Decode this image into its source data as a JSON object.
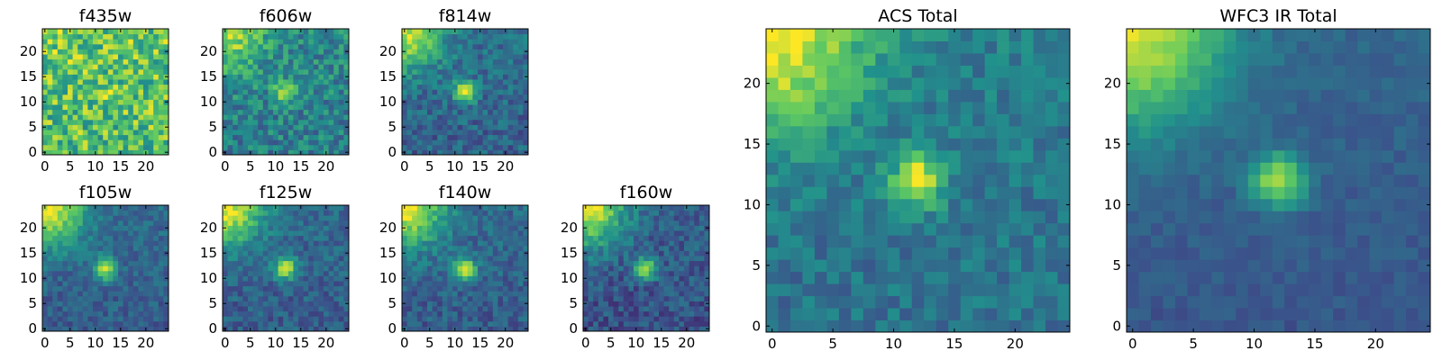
{
  "figure": {
    "layout": "grid",
    "background": "#ffffff"
  },
  "colormap": [
    "#440154",
    "#3b528b",
    "#21918c",
    "#5ec962",
    "#fde725"
  ],
  "chart_data": [
    {
      "type": "heatmap",
      "title": "f435w",
      "grid_size": 25,
      "source_position": [
        12,
        12
      ],
      "source_strength": 0.08,
      "corner_glow": 0.05,
      "noise_level": 0.5,
      "background_level": 0.72,
      "seed": 11,
      "xlim": [
        0,
        24
      ],
      "ylim": [
        0,
        24
      ],
      "xticks": [
        0,
        5,
        10,
        15,
        20
      ],
      "yticks": [
        0,
        5,
        10,
        15,
        20
      ]
    },
    {
      "type": "heatmap",
      "title": "f606w",
      "grid_size": 25,
      "source_position": [
        12,
        12
      ],
      "source_strength": 0.45,
      "corner_glow": 0.4,
      "noise_level": 0.34,
      "background_level": 0.45,
      "seed": 23,
      "xlim": [
        0,
        24
      ],
      "ylim": [
        0,
        24
      ],
      "xticks": [
        0,
        5,
        10,
        15,
        20
      ],
      "yticks": [
        0,
        5,
        10,
        15,
        20
      ]
    },
    {
      "type": "heatmap",
      "title": "f814w",
      "grid_size": 25,
      "source_position": [
        12,
        12
      ],
      "source_strength": 0.62,
      "corner_glow": 0.55,
      "noise_level": 0.26,
      "background_level": 0.34,
      "seed": 37,
      "xlim": [
        0,
        24
      ],
      "ylim": [
        0,
        24
      ],
      "xticks": [
        0,
        5,
        10,
        15,
        20
      ],
      "yticks": [
        0,
        5,
        10,
        15,
        20
      ]
    },
    {
      "type": "heatmap",
      "title": "f105w",
      "grid_size": 25,
      "source_position": [
        12,
        12
      ],
      "source_strength": 0.6,
      "corner_glow": 0.62,
      "noise_level": 0.2,
      "background_level": 0.32,
      "seed": 41,
      "xlim": [
        0,
        24
      ],
      "ylim": [
        0,
        24
      ],
      "xticks": [
        0,
        5,
        10,
        15,
        20
      ],
      "yticks": [
        0,
        5,
        10,
        15,
        20
      ]
    },
    {
      "type": "heatmap",
      "title": "f125w",
      "grid_size": 25,
      "source_position": [
        12,
        12
      ],
      "source_strength": 0.6,
      "corner_glow": 0.6,
      "noise_level": 0.22,
      "background_level": 0.32,
      "seed": 53,
      "xlim": [
        0,
        24
      ],
      "ylim": [
        0,
        24
      ],
      "xticks": [
        0,
        5,
        10,
        15,
        20
      ],
      "yticks": [
        0,
        5,
        10,
        15,
        20
      ]
    },
    {
      "type": "heatmap",
      "title": "f140w",
      "grid_size": 25,
      "source_position": [
        12,
        12
      ],
      "source_strength": 0.62,
      "corner_glow": 0.62,
      "noise_level": 0.22,
      "background_level": 0.32,
      "seed": 67,
      "xlim": [
        0,
        24
      ],
      "ylim": [
        0,
        24
      ],
      "xticks": [
        0,
        5,
        10,
        15,
        20
      ],
      "yticks": [
        0,
        5,
        10,
        15,
        20
      ]
    },
    {
      "type": "heatmap",
      "title": "f160w",
      "grid_size": 25,
      "source_position": [
        12,
        12
      ],
      "source_strength": 0.6,
      "corner_glow": 0.65,
      "noise_level": 0.24,
      "background_level": 0.28,
      "seed": 79,
      "xlim": [
        0,
        24
      ],
      "ylim": [
        0,
        24
      ],
      "xticks": [
        0,
        5,
        10,
        15,
        20
      ],
      "yticks": [
        0,
        5,
        10,
        15,
        20
      ]
    },
    {
      "type": "heatmap",
      "title": "ACS Total",
      "grid_size": 25,
      "source_position": [
        12,
        12
      ],
      "source_strength": 0.58,
      "corner_glow": 0.58,
      "noise_level": 0.22,
      "background_level": 0.4,
      "seed": 83,
      "xlim": [
        0,
        24
      ],
      "ylim": [
        0,
        24
      ],
      "xticks": [
        0,
        5,
        10,
        15,
        20
      ],
      "yticks": [
        0,
        5,
        10,
        15,
        20
      ]
    },
    {
      "type": "heatmap",
      "title": "WFC3 IR Total",
      "grid_size": 25,
      "source_position": [
        12,
        12
      ],
      "source_strength": 0.58,
      "corner_glow": 0.6,
      "noise_level": 0.1,
      "background_level": 0.3,
      "seed": 97,
      "xlim": [
        0,
        24
      ],
      "ylim": [
        0,
        24
      ],
      "xticks": [
        0,
        5,
        10,
        15,
        20
      ],
      "yticks": [
        0,
        5,
        10,
        15,
        20
      ]
    }
  ]
}
